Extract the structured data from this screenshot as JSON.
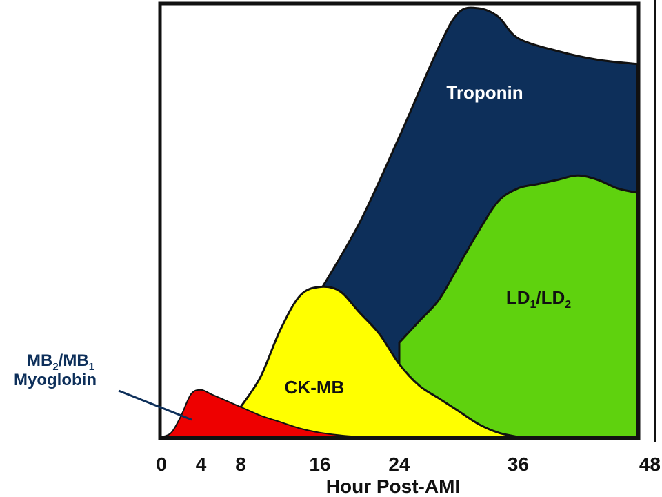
{
  "chart_data": {
    "type": "area",
    "xlabel": "Hour Post-AMI",
    "x_ticks": [
      0,
      4,
      8,
      16,
      24,
      36,
      48
    ],
    "xlim": [
      0,
      48
    ],
    "ylim": [
      0,
      100
    ],
    "grid": false,
    "series": [
      {
        "name": "Troponin",
        "label": "Troponin",
        "color": "#0d2f5a",
        "points": [
          [
            16,
            34
          ],
          [
            20,
            50
          ],
          [
            24,
            70
          ],
          [
            28,
            91
          ],
          [
            30,
            99
          ],
          [
            32,
            100
          ],
          [
            34,
            98
          ],
          [
            36,
            93
          ],
          [
            40,
            90
          ],
          [
            44,
            88
          ],
          [
            48,
            87
          ]
        ]
      },
      {
        "name": "LD1/LD2",
        "label_main": "LD",
        "label_sub1": "1",
        "label_mid": "/LD",
        "label_sub2": "2",
        "color": "#5fd20e",
        "points": [
          [
            24,
            22
          ],
          [
            26,
            27
          ],
          [
            28,
            32
          ],
          [
            30,
            40
          ],
          [
            32,
            48
          ],
          [
            34,
            55
          ],
          [
            36,
            58
          ],
          [
            38,
            59
          ],
          [
            40,
            60
          ],
          [
            42,
            61
          ],
          [
            44,
            60
          ],
          [
            46,
            58
          ],
          [
            48,
            57
          ]
        ]
      },
      {
        "name": "CK-MB",
        "label": "CK-MB",
        "color": "#ffff00",
        "points": [
          [
            8,
            7
          ],
          [
            10,
            14
          ],
          [
            12,
            25
          ],
          [
            14,
            33
          ],
          [
            16,
            35
          ],
          [
            18,
            34
          ],
          [
            20,
            29
          ],
          [
            22,
            24
          ],
          [
            24,
            17
          ],
          [
            26,
            12
          ],
          [
            28,
            9
          ],
          [
            30,
            6
          ],
          [
            32,
            3
          ],
          [
            34,
            1
          ],
          [
            36,
            0
          ]
        ]
      },
      {
        "name": "MB2/MB1 Myoglobin",
        "color": "#ee0000",
        "points": [
          [
            0,
            0
          ],
          [
            1,
            1
          ],
          [
            2,
            5
          ],
          [
            3,
            10
          ],
          [
            4,
            11
          ],
          [
            5,
            10
          ],
          [
            6,
            9
          ],
          [
            7,
            8
          ],
          [
            8,
            7
          ],
          [
            10,
            5
          ],
          [
            12,
            3.5
          ],
          [
            14,
            2
          ],
          [
            16,
            1
          ],
          [
            18,
            0.4
          ],
          [
            20,
            0
          ]
        ]
      }
    ],
    "callout": {
      "line1_main": "MB",
      "line1_sub1": "2",
      "line1_mid": "/MB",
      "line1_sub2": "1",
      "line2": "Myoglobin",
      "color": "#0d2f5a"
    }
  }
}
